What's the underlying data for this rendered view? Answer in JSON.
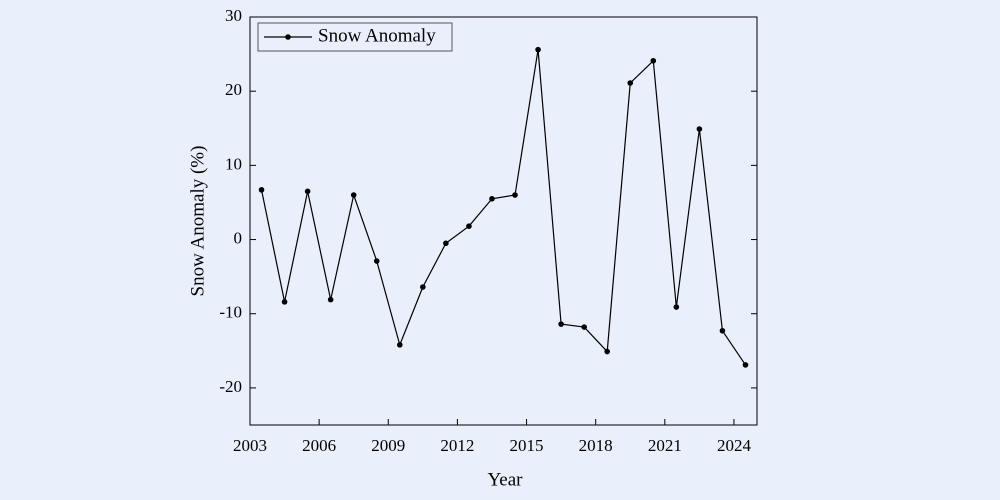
{
  "chart_data": {
    "type": "line",
    "x_label": "Year",
    "y_label": "Snow Anomaly (%)",
    "x": [
      2003.5,
      2004.5,
      2005.5,
      2006.5,
      2007.5,
      2008.5,
      2009.5,
      2010.5,
      2011.5,
      2012.5,
      2013.5,
      2014.5,
      2015.5,
      2016.5,
      2017.5,
      2018.5,
      2019.5,
      2020.5,
      2021.5,
      2022.5,
      2023.5,
      2024.5
    ],
    "series": [
      {
        "name": "Snow Anomaly",
        "color": "#000000",
        "values": [
          6.7,
          -8.4,
          6.5,
          -8.1,
          6.0,
          -2.9,
          -14.2,
          -6.4,
          -0.5,
          1.8,
          5.5,
          6.0,
          25.6,
          -11.4,
          -11.8,
          -15.1,
          21.1,
          24.1,
          -9.1,
          14.9,
          -12.3,
          -16.9
        ]
      }
    ],
    "xlim": [
      2003,
      2025
    ],
    "xticks": [
      2003,
      2006,
      2009,
      2012,
      2015,
      2018,
      2021,
      2024
    ],
    "ylim": [
      -25,
      30
    ],
    "yticks": [
      -20,
      -10,
      0,
      10,
      20,
      30
    ],
    "legend": "top-left"
  }
}
